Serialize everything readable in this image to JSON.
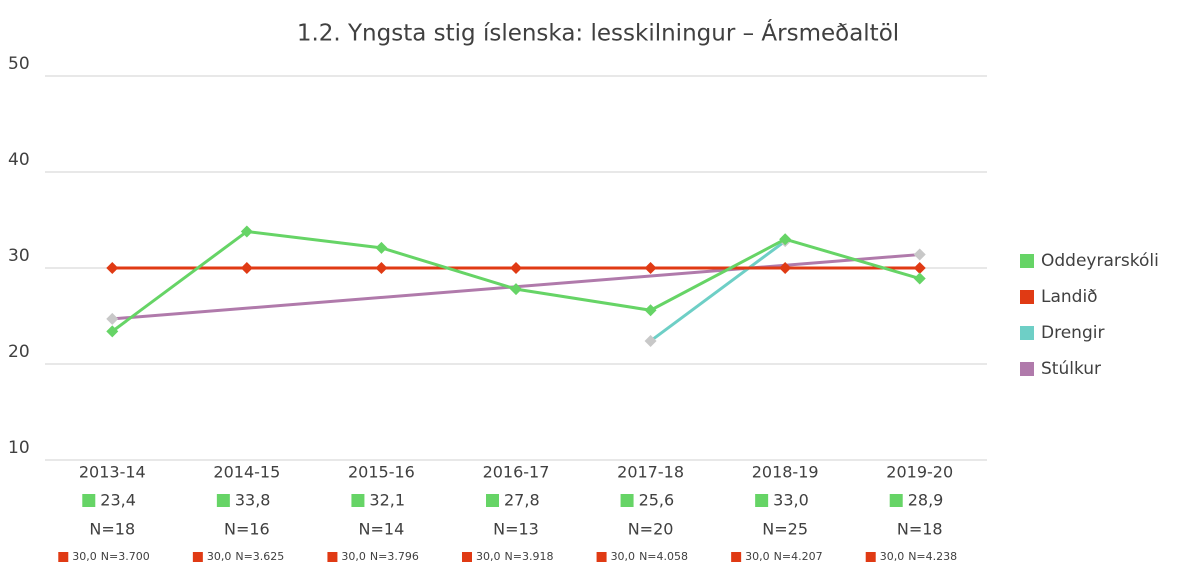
{
  "chart_data": {
    "type": "line",
    "title": "1.2. Yngsta stig íslenska: lesskilningur – Ársmeðaltöl",
    "categories": [
      "2013-14",
      "2014-15",
      "2015-16",
      "2016-17",
      "2017-18",
      "2018-19",
      "2019-20"
    ],
    "series": [
      {
        "name": "Stúlkur",
        "color": "#b07aab",
        "marker_color": "#c8c8c8",
        "span_gaps": true,
        "values": [
          24.7,
          null,
          null,
          null,
          null,
          null,
          31.4
        ]
      },
      {
        "name": "Drengir",
        "color": "#6ecfc6",
        "marker_color": "#c8c8c8",
        "values": [
          null,
          null,
          null,
          null,
          22.4,
          32.8,
          null
        ]
      },
      {
        "name": "Landið",
        "color": "#e03a14",
        "marker_color": "#e03a14",
        "values": [
          30.0,
          30.0,
          30.0,
          30.0,
          30.0,
          30.0,
          30.0
        ],
        "value_labels": [
          "30,0",
          "30,0",
          "30,0",
          "30,0",
          "30,0",
          "30,0",
          "30,0"
        ],
        "n_labels": [
          "N=3.700",
          "N=3.625",
          "N=3.796",
          "N=3.918",
          "N=4.058",
          "N=4.207",
          "N=4.238"
        ]
      },
      {
        "name": "Oddeyrarskóli",
        "color": "#66d466",
        "marker_color": "#66d466",
        "values": [
          23.4,
          33.8,
          32.1,
          27.8,
          25.6,
          33.0,
          28.9
        ],
        "value_labels": [
          "23,4",
          "33,8",
          "32,1",
          "27,8",
          "25,6",
          "33,0",
          "28,9"
        ],
        "n_labels": [
          "N=18",
          "N=16",
          "N=14",
          "N=13",
          "N=20",
          "N=25",
          "N=18"
        ]
      }
    ],
    "legend_order": [
      3,
      2,
      1,
      0
    ],
    "ylim": [
      10,
      50
    ],
    "yticks": [
      10,
      20,
      30,
      40,
      50
    ],
    "grid": true,
    "legend": "right"
  }
}
